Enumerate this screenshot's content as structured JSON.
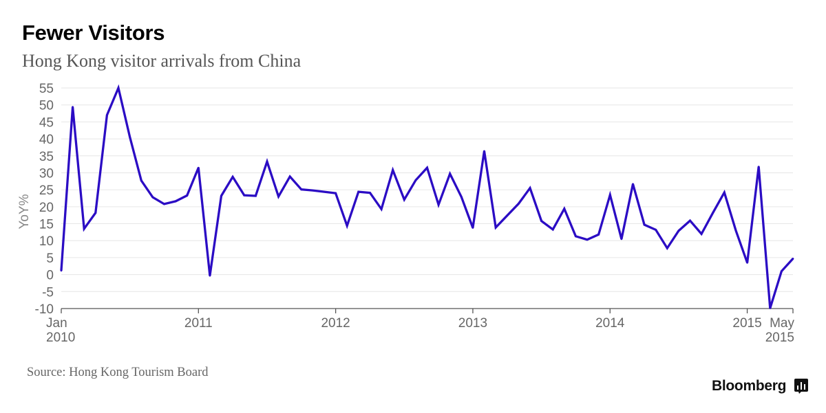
{
  "header": {
    "title": "Fewer Visitors",
    "subtitle": "Hong Kong visitor arrivals from China"
  },
  "footer": {
    "source": "Source: Hong Kong Tourism Board",
    "brand": "Bloomberg"
  },
  "icons": {
    "brand_icon": "bloomberg-terminal-icon"
  },
  "colors": {
    "series": "#2b0cc4",
    "grid": "#e6e6e6",
    "axis": "#555555"
  },
  "chart_data": {
    "type": "line",
    "ylabel": "YoY%",
    "ylim": [
      -10,
      55
    ],
    "yticks": [
      -10,
      -5,
      0,
      5,
      10,
      15,
      20,
      25,
      30,
      35,
      40,
      45,
      50,
      55
    ],
    "xlim": [
      "2010-01",
      "2015-05"
    ],
    "xticks": [
      {
        "x": "2010-01",
        "label": [
          "Jan",
          "2010"
        ]
      },
      {
        "x": "2011-01",
        "label": [
          "2011"
        ]
      },
      {
        "x": "2012-01",
        "label": [
          "2012"
        ]
      },
      {
        "x": "2013-01",
        "label": [
          "2013"
        ]
      },
      {
        "x": "2014-01",
        "label": [
          "2014"
        ]
      },
      {
        "x": "2015-01",
        "label": [
          "2015"
        ]
      },
      {
        "x": "2015-05",
        "label": [
          "May",
          "2015"
        ]
      }
    ],
    "grid": true,
    "series": [
      {
        "x": [
          "2010-01",
          "2010-02",
          "2010-03",
          "2010-04",
          "2010-05",
          "2010-06",
          "2010-07",
          "2010-08",
          "2010-09",
          "2010-10",
          "2010-11",
          "2010-12",
          "2011-01",
          "2011-02",
          "2011-03",
          "2011-04",
          "2011-05",
          "2011-06",
          "2011-07",
          "2011-08",
          "2011-09",
          "2011-10",
          "2011-11",
          "2011-12",
          "2012-01",
          "2012-02",
          "2012-03",
          "2012-04",
          "2012-05",
          "2012-06",
          "2012-07",
          "2012-08",
          "2012-09",
          "2012-10",
          "2012-11",
          "2012-12",
          "2013-01",
          "2013-02",
          "2013-03",
          "2013-04",
          "2013-05",
          "2013-06",
          "2013-07",
          "2013-08",
          "2013-09",
          "2013-10",
          "2013-11",
          "2013-12",
          "2014-01",
          "2014-02",
          "2014-03",
          "2014-04",
          "2014-05",
          "2014-06",
          "2014-07",
          "2014-08",
          "2014-09",
          "2014-10",
          "2014-11",
          "2014-12",
          "2015-01",
          "2015-02",
          "2015-03",
          "2015-04",
          "2015-05"
        ],
        "values": [
          1.2,
          49.4,
          13.5,
          18.2,
          47.0,
          55.0,
          40.5,
          27.7,
          22.8,
          20.8,
          21.6,
          23.3,
          31.5,
          -0.3,
          23.2,
          28.8,
          23.4,
          23.2,
          33.3,
          23.0,
          28.9,
          25.1,
          24.8,
          24.4,
          24.0,
          14.4,
          24.4,
          24.1,
          19.3,
          30.8,
          22.1,
          27.8,
          31.5,
          20.6,
          29.7,
          22.9,
          13.8,
          36.4,
          13.9,
          17.4,
          20.9,
          25.5,
          15.8,
          13.3,
          19.4,
          11.3,
          10.3,
          11.8,
          23.5,
          10.5,
          26.7,
          14.7,
          13.2,
          7.8,
          12.9,
          15.9,
          12.0,
          18.2,
          24.2,
          13.0,
          3.5,
          31.8,
          -9.9,
          1.0,
          4.7
        ]
      }
    ]
  }
}
